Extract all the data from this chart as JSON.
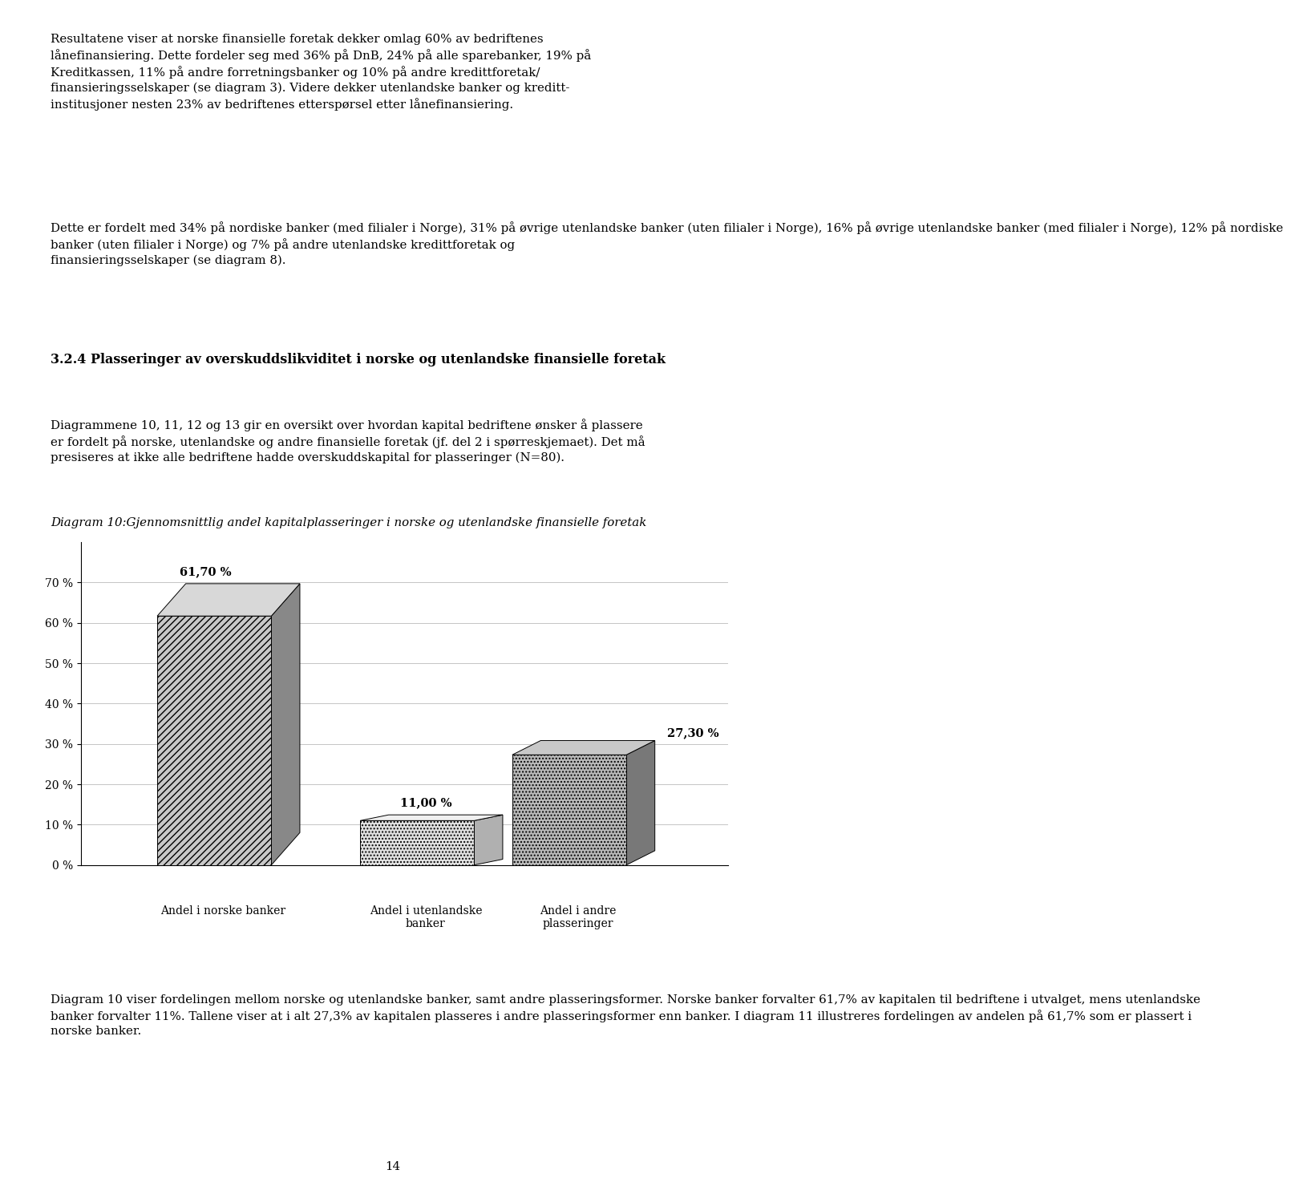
{
  "values": [
    61.7,
    11.0,
    27.3
  ],
  "value_labels": [
    "61,70 %",
    "11,00 %",
    "27,30 %"
  ],
  "yticks": [
    0,
    10,
    20,
    30,
    40,
    50,
    60,
    70
  ],
  "ytick_labels": [
    "0 %",
    "10 %",
    "20 %",
    "30 %",
    "40 %",
    "50 %",
    "60 %",
    "70 %"
  ],
  "background_color": "#ffffff",
  "para1": "Resultatene viser at norske finansielle foretak dekker omlag 60% av bedriftenes\nlånefinansiering. Dette fordeler seg med 36% på DnB, 24% på alle sparebanker, 19% på\nKreditkassen, 11% på andre forretningsbanker og 10% på andre kredittforetak/\nfinansieringsselskaper (se diagram 3). Videre dekker utenlandske banker og kreditt-\ninstitusjoner nesten 23% av bedriftenes etterspørsel etter lånefinansiering.",
  "para2": "Dette er fordelt med 34% på nordiske banker (med filialer i Norge), 31% på øvrige utenlandske banker (uten filialer i Norge), 16% på øvrige utenlandske banker (med filialer i Norge), 12% på nordiske\nbanker (uten filialer i Norge) og 7% på andre utenlandske kredittforetak og\nfinansieringsselskaper (se diagram 8).",
  "section_heading": "3.2.4 Plasseringer av overskuddslikviditet i norske og utenlandske finansielle foretak",
  "para3": "Diagrammene 10, 11, 12 og 13 gir en oversikt over hvordan kapital bedriftene ønsker å plassere\ner fordelt på norske, utenlandske og andre finansielle foretak (jf. del 2 i spørreskjemaet). Det må\npresiseres at ikke alle bedriftene hadde overskuddskapital for plasseringer (N=80).",
  "diagram_title": "Diagram 10:Gjennomsnittlig andel kapitalplasseringer i norske og utenlandske finansielle foretak",
  "para4_line1": "Diagram 10 viser fordelingen mellom norske og utenlandske banker, samt andre plasseringsformer. Norske banker forvalter 61,7% av kapitalen til bedriftene i utvalget, mens utenlandske",
  "para4_line2": "banker forvalter 11%. Tallene viser at i alt 27,3% av kapitalen plasseres i andre plasseringsformer enn banker. I diagram 11 illustreres fordelingen av andelen på 61,7% som er plassert i",
  "para4_line3": "norske banker.",
  "page_number": "14",
  "cat_labels": [
    "Andel i norske banker",
    "Andel i utenlandske\nbanker",
    "Andel i andre\nplasseringer"
  ]
}
